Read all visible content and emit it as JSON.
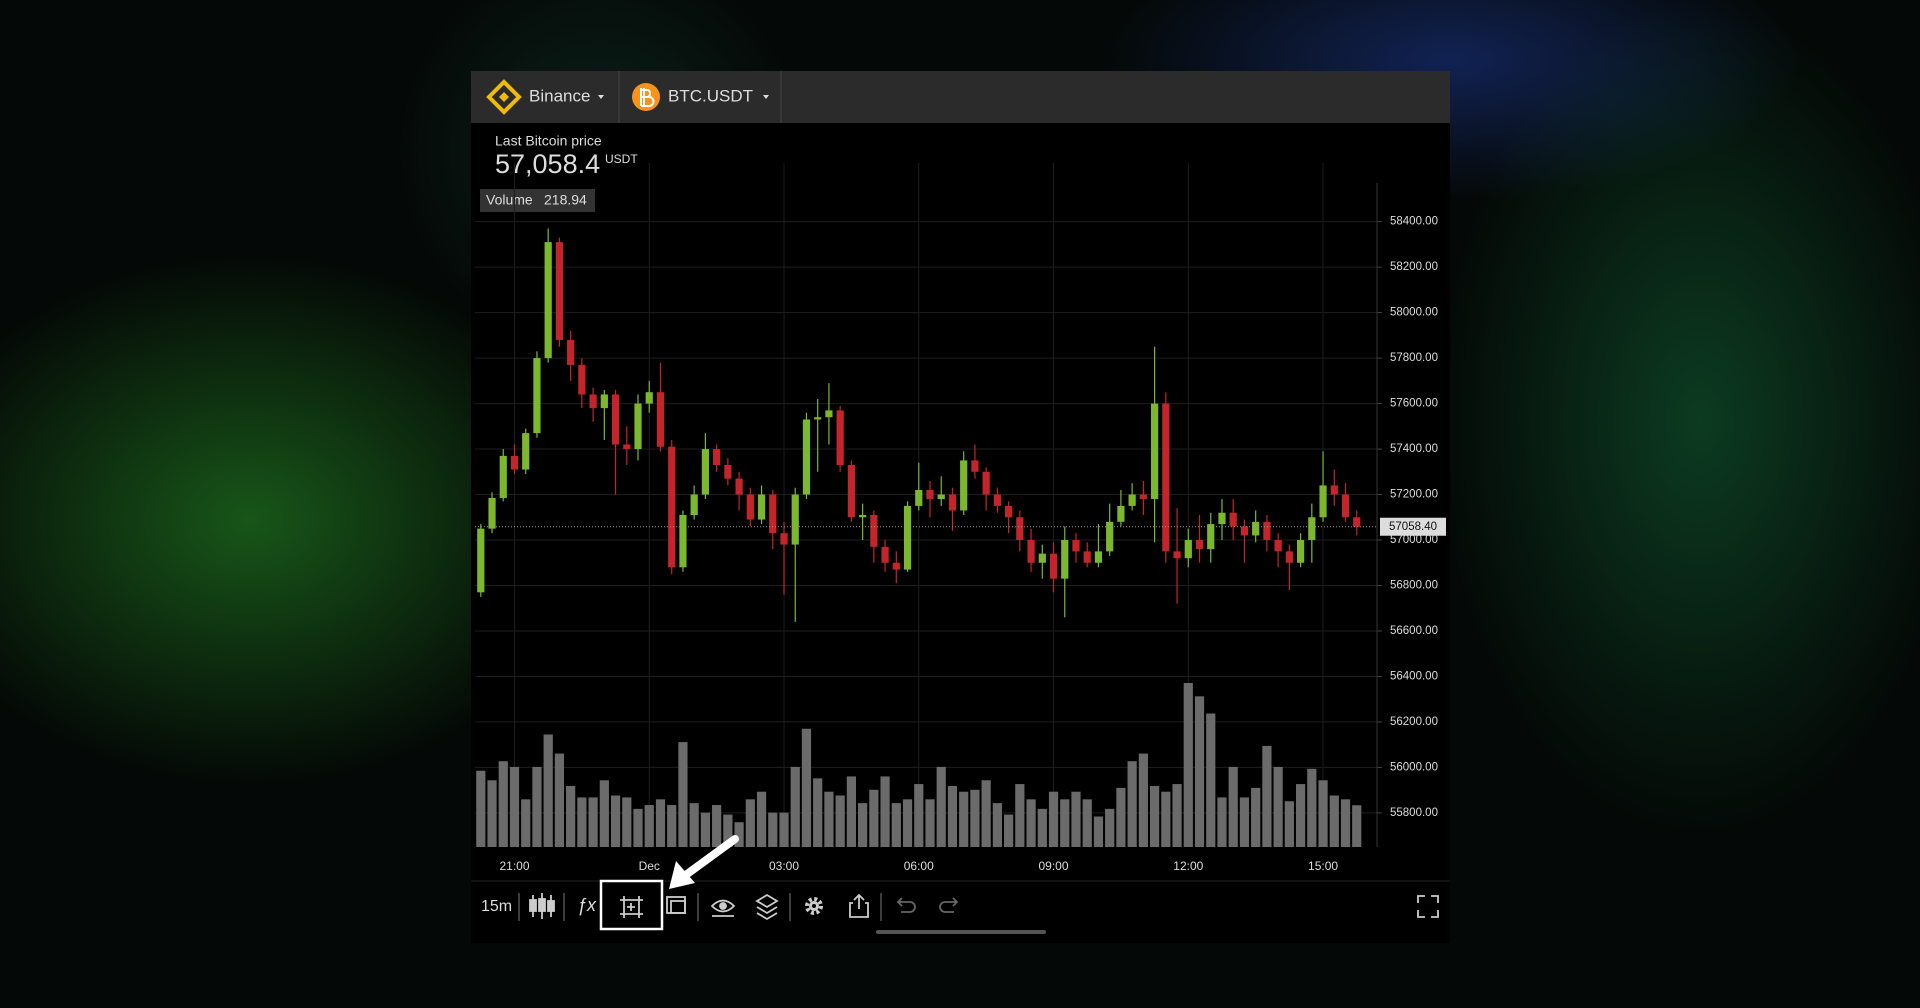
{
  "toolbar_top": {
    "exchange": "Binance",
    "pair": "BTC.USDT"
  },
  "price_panel": {
    "label": "Last Bitcoin price",
    "price": "57,058.4",
    "unit": "USDT",
    "volume_label": "Volume"
  },
  "toolbar_bottom": {
    "interval": "15m",
    "functions": "ƒx"
  },
  "chart_data": {
    "type": "candlestick",
    "categories": [
      null,
      null,
      null,
      "21:00",
      null,
      null,
      null,
      null,
      null,
      null,
      null,
      null,
      null,
      null,
      null,
      "Dec",
      null,
      null,
      null,
      null,
      null,
      null,
      null,
      null,
      null,
      null,
      null,
      "03:00",
      null,
      null,
      null,
      null,
      null,
      null,
      null,
      null,
      null,
      null,
      null,
      "06:00",
      null,
      null,
      null,
      null,
      null,
      null,
      null,
      null,
      null,
      null,
      null,
      "09:00",
      null,
      null,
      null,
      null,
      null,
      null,
      null,
      null,
      null,
      null,
      null,
      "12:00",
      null,
      null,
      null,
      null,
      null,
      null,
      null,
      null,
      null,
      null,
      null,
      "15:00",
      null,
      null,
      null
    ],
    "open": [
      56770,
      57050,
      57185,
      57370,
      57310,
      57470,
      57800,
      58310,
      57880,
      57770,
      57640,
      57580,
      57640,
      57420,
      57400,
      57600,
      57650,
      57410,
      56880,
      57110,
      57200,
      57400,
      57330,
      57270,
      57200,
      57090,
      57200,
      57030,
      56980,
      57200,
      57530,
      57540,
      57570,
      57330,
      57100,
      57110,
      56970,
      56900,
      56870,
      57150,
      57220,
      57180,
      57200,
      57130,
      57350,
      57300,
      57200,
      57150,
      57100,
      57000,
      56900,
      56940,
      56830,
      57000,
      56950,
      56900,
      56950,
      57080,
      57150,
      57200,
      57180,
      57600,
      56950,
      56920,
      57000,
      56960,
      57070,
      57120,
      57060,
      57020,
      57080,
      57000,
      56950,
      56900,
      57000,
      57100,
      57240,
      57200,
      57100
    ],
    "high": [
      57070,
      57210,
      57400,
      57420,
      57490,
      57830,
      58370,
      58330,
      57920,
      57800,
      57670,
      57660,
      57660,
      57500,
      57640,
      57700,
      57780,
      57440,
      57130,
      57240,
      57470,
      57420,
      57360,
      57300,
      57230,
      57240,
      57220,
      57080,
      57230,
      57560,
      57620,
      57690,
      57590,
      57350,
      57160,
      57130,
      57000,
      56950,
      57170,
      57340,
      57260,
      57280,
      57230,
      57390,
      57420,
      57320,
      57230,
      57170,
      57130,
      57050,
      56980,
      56990,
      57060,
      57030,
      56990,
      57070,
      57160,
      57220,
      57250,
      57260,
      57850,
      57650,
      57140,
      57050,
      57110,
      57120,
      57180,
      57180,
      57090,
      57130,
      57110,
      57030,
      56980,
      57030,
      57160,
      57390,
      57310,
      57250,
      57130
    ],
    "low": [
      56750,
      57030,
      57170,
      57290,
      57290,
      57450,
      57780,
      57850,
      57700,
      57580,
      57520,
      57440,
      57200,
      57330,
      57350,
      57560,
      57390,
      56850,
      56860,
      57090,
      57180,
      57300,
      57240,
      57130,
      57060,
      57070,
      56960,
      56760,
      56640,
      57180,
      57300,
      57420,
      57300,
      57080,
      57000,
      56900,
      56860,
      56810,
      56860,
      57130,
      57100,
      57150,
      57040,
      57110,
      57270,
      57130,
      57120,
      57030,
      56950,
      56860,
      56830,
      56770,
      56660,
      56900,
      56880,
      56880,
      56930,
      57060,
      57130,
      57110,
      56990,
      56900,
      56720,
      56880,
      56900,
      56900,
      57000,
      57000,
      56900,
      56990,
      56950,
      56880,
      56780,
      56880,
      56900,
      57080,
      57150,
      57080,
      57020
    ],
    "close": [
      57050,
      57185,
      57370,
      57310,
      57470,
      57800,
      58310,
      57880,
      57770,
      57640,
      57580,
      57640,
      57420,
      57400,
      57600,
      57650,
      57410,
      56880,
      57110,
      57200,
      57400,
      57330,
      57270,
      57200,
      57090,
      57200,
      57030,
      56980,
      57200,
      57530,
      57540,
      57570,
      57330,
      57100,
      57110,
      56970,
      56900,
      56870,
      57150,
      57220,
      57180,
      57200,
      57130,
      57350,
      57300,
      57200,
      57150,
      57100,
      57000,
      56900,
      56940,
      56830,
      57000,
      56950,
      56900,
      56950,
      57080,
      57150,
      57200,
      57180,
      57600,
      56950,
      56920,
      57000,
      56960,
      57070,
      57120,
      57060,
      57020,
      57080,
      57000,
      56950,
      56900,
      57000,
      57100,
      57240,
      57200,
      57100,
      57058.4
    ],
    "volume": [
      400,
      350,
      450,
      420,
      250,
      420,
      590,
      490,
      320,
      260,
      260,
      350,
      270,
      260,
      200,
      220,
      250,
      220,
      550,
      230,
      180,
      220,
      170,
      130,
      250,
      290,
      180,
      180,
      420,
      620,
      360,
      290,
      270,
      370,
      230,
      300,
      370,
      230,
      250,
      330,
      250,
      420,
      320,
      290,
      300,
      350,
      230,
      170,
      330,
      250,
      200,
      290,
      250,
      290,
      250,
      160,
      200,
      310,
      450,
      490,
      320,
      290,
      330,
      860,
      790,
      700,
      260,
      420,
      260,
      310,
      530,
      420,
      240,
      330,
      410,
      350,
      270,
      250,
      218.94
    ],
    "up_color": "#7cb82f",
    "down_color": "#c4252b",
    "volume_color": "#6b6b6b",
    "ylim": [
      55650,
      58570
    ],
    "yticks": [
      {
        "value": 55800,
        "label": "55800.00"
      },
      {
        "value": 56000,
        "label": "56000.00"
      },
      {
        "value": 56200,
        "label": "56200.00"
      },
      {
        "value": 56400,
        "label": "56400.00"
      },
      {
        "value": 56600,
        "label": "56600.00"
      },
      {
        "value": 56800,
        "label": "56800.00"
      },
      {
        "value": 57000,
        "label": "57000.00"
      },
      {
        "value": 57200,
        "label": "57200.00"
      },
      {
        "value": 57400,
        "label": "57400.00"
      },
      {
        "value": 57600,
        "label": "57600.00"
      },
      {
        "value": 57800,
        "label": "57800.00"
      },
      {
        "value": 58000,
        "label": "58000.00"
      },
      {
        "value": 58200,
        "label": "58200.00"
      },
      {
        "value": 58400,
        "label": "58400.00"
      }
    ],
    "grid": true,
    "price_line": {
      "value": 57058.4,
      "label": "57058.40"
    }
  }
}
